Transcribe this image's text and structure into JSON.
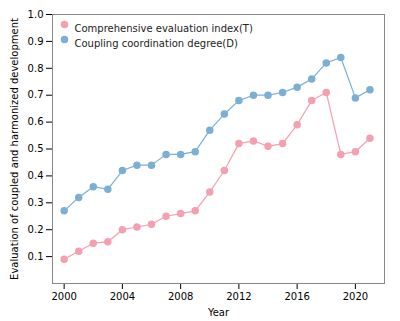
{
  "chart_data": {
    "type": "line",
    "xlabel": "Year",
    "ylabel": "Evaluation of coupled and harmonized development",
    "x": [
      2000,
      2001,
      2002,
      2003,
      2004,
      2005,
      2006,
      2007,
      2008,
      2009,
      2010,
      2011,
      2012,
      2013,
      2014,
      2015,
      2016,
      2017,
      2018,
      2019,
      2020,
      2021
    ],
    "series": [
      {
        "name": "Comprehensive evaluation index(T)",
        "color": "#F4A0B0",
        "marker": "circle",
        "values": [
          0.09,
          0.12,
          0.15,
          0.155,
          0.2,
          0.21,
          0.22,
          0.25,
          0.26,
          0.27,
          0.34,
          0.42,
          0.52,
          0.53,
          0.51,
          0.52,
          0.59,
          0.68,
          0.71,
          0.48,
          0.49,
          0.54
        ]
      },
      {
        "name": "Coupling coordination degree(D)",
        "color": "#7BAFD4",
        "marker": "circle",
        "values": [
          0.27,
          0.32,
          0.36,
          0.35,
          0.42,
          0.44,
          0.44,
          0.48,
          0.48,
          0.49,
          0.57,
          0.63,
          0.68,
          0.7,
          0.7,
          0.71,
          0.73,
          0.76,
          0.82,
          0.84,
          0.69,
          0.72
        ]
      }
    ],
    "xlim": [
      1999.2,
      2022.0
    ],
    "xticks": [
      2000,
      2004,
      2008,
      2012,
      2016,
      2020
    ],
    "ylim": [
      0.0,
      1.0
    ],
    "yticks": [
      0.1,
      0.2,
      0.3,
      0.4,
      0.5,
      0.6,
      0.7,
      0.8,
      0.9,
      {
        "value": 1.0,
        "label": "1.0"
      }
    ],
    "grid": false,
    "legend": "upper left"
  }
}
